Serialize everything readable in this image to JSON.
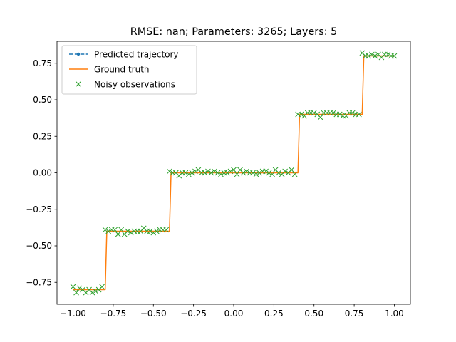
{
  "chart_data": {
    "type": "line",
    "title": "RMSE: nan; Parameters: 3265; Layers: 5",
    "xlabel": "",
    "ylabel": "",
    "xlim": [
      -1.1,
      1.1
    ],
    "ylim": [
      -0.9,
      0.9
    ],
    "x_ticks": [
      -1.0,
      -0.75,
      -0.5,
      -0.25,
      0.0,
      0.25,
      0.5,
      0.75,
      1.0
    ],
    "x_tick_labels": [
      "−1.00",
      "−0.75",
      "−0.50",
      "−0.25",
      "0.00",
      "0.25",
      "0.50",
      "0.75",
      "1.00"
    ],
    "y_ticks": [
      -0.75,
      -0.5,
      -0.25,
      0.0,
      0.25,
      0.5,
      0.75
    ],
    "y_tick_labels": [
      "−0.75",
      "−0.50",
      "−0.25",
      "0.00",
      "0.25",
      "0.50",
      "0.75"
    ],
    "grid": false,
    "legend_position": "top-left",
    "series": [
      {
        "name": "Predicted trajectory",
        "style": "dashed-line-dot-markers",
        "color": "#1f77b4",
        "x": [],
        "y": []
      },
      {
        "name": "Ground truth",
        "style": "line",
        "color": "#ff7f0e",
        "x": [
          -1.0,
          -0.8,
          -0.79,
          -0.4,
          -0.39,
          0.4,
          0.41,
          0.8,
          0.81,
          1.0
        ],
        "y": [
          -0.8,
          -0.8,
          -0.4,
          -0.4,
          0.0,
          0.0,
          0.4,
          0.4,
          0.8,
          0.8
        ]
      },
      {
        "name": "Noisy observations",
        "style": "x-markers",
        "color": "#2ca02c",
        "x": [
          -1.0,
          -0.98,
          -0.96,
          -0.94,
          -0.92,
          -0.9,
          -0.88,
          -0.86,
          -0.84,
          -0.82,
          -0.8,
          -0.78,
          -0.76,
          -0.74,
          -0.72,
          -0.7,
          -0.68,
          -0.66,
          -0.64,
          -0.62,
          -0.6,
          -0.58,
          -0.56,
          -0.54,
          -0.52,
          -0.5,
          -0.48,
          -0.46,
          -0.44,
          -0.42,
          -0.4,
          -0.38,
          -0.36,
          -0.34,
          -0.32,
          -0.3,
          -0.28,
          -0.26,
          -0.24,
          -0.22,
          -0.2,
          -0.18,
          -0.16,
          -0.14,
          -0.12,
          -0.1,
          -0.08,
          -0.06,
          -0.04,
          -0.02,
          0.0,
          0.02,
          0.04,
          0.06,
          0.08,
          0.1,
          0.12,
          0.14,
          0.16,
          0.18,
          0.2,
          0.22,
          0.24,
          0.26,
          0.28,
          0.3,
          0.32,
          0.34,
          0.36,
          0.38,
          0.4,
          0.42,
          0.44,
          0.46,
          0.48,
          0.5,
          0.52,
          0.54,
          0.56,
          0.58,
          0.6,
          0.62,
          0.64,
          0.66,
          0.68,
          0.7,
          0.72,
          0.74,
          0.76,
          0.78,
          0.8,
          0.82,
          0.84,
          0.86,
          0.88,
          0.9,
          0.92,
          0.94,
          0.96,
          0.98,
          1.0
        ],
        "y": [
          -0.78,
          -0.82,
          -0.79,
          -0.8,
          -0.82,
          -0.8,
          -0.82,
          -0.81,
          -0.8,
          -0.78,
          -0.39,
          -0.4,
          -0.39,
          -0.39,
          -0.42,
          -0.39,
          -0.42,
          -0.4,
          -0.41,
          -0.4,
          -0.4,
          -0.4,
          -0.38,
          -0.4,
          -0.4,
          -0.41,
          -0.4,
          -0.39,
          -0.39,
          -0.39,
          0.01,
          0.0,
          0.0,
          -0.02,
          0.0,
          0.0,
          -0.01,
          0.0,
          0.01,
          0.02,
          0.0,
          0.0,
          0.01,
          0.0,
          0.01,
          0.0,
          -0.01,
          0.0,
          0.0,
          0.01,
          0.02,
          -0.01,
          0.02,
          0.0,
          0.01,
          0.0,
          0.0,
          -0.01,
          0.0,
          0.01,
          0.01,
          0.0,
          -0.01,
          0.02,
          0.0,
          -0.01,
          0.01,
          0.0,
          0.02,
          -0.01,
          0.4,
          0.4,
          0.39,
          0.41,
          0.41,
          0.41,
          0.4,
          0.38,
          0.41,
          0.41,
          0.41,
          0.41,
          0.4,
          0.4,
          0.39,
          0.39,
          0.41,
          0.41,
          0.4,
          0.4,
          0.82,
          0.8,
          0.8,
          0.81,
          0.8,
          0.81,
          0.79,
          0.81,
          0.81,
          0.8,
          0.8
        ]
      }
    ]
  }
}
